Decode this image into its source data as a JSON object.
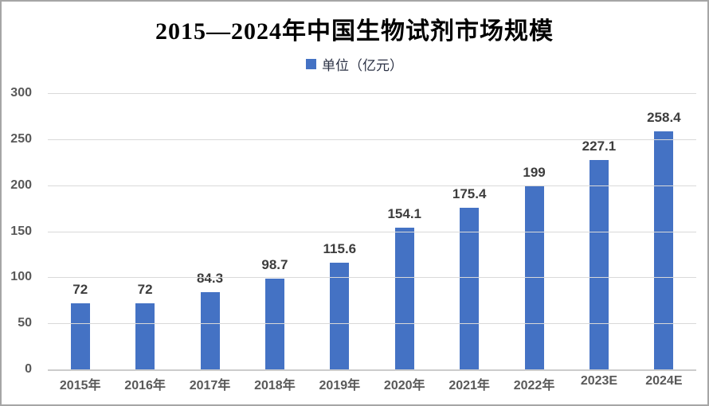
{
  "chart_data": {
    "type": "bar",
    "title": "2015—2024年中国生物试剂市场规模",
    "legend": {
      "label": "单位（亿元）",
      "swatch_color": "#4472C4",
      "position": "top-center"
    },
    "categories": [
      "2015年",
      "2016年",
      "2017年",
      "2018年",
      "2019年",
      "2020年",
      "2021年",
      "2022年",
      "2023E",
      "2024E"
    ],
    "values": [
      72,
      72,
      84.3,
      98.7,
      115.6,
      154.1,
      175.4,
      199,
      227.1,
      258.4
    ],
    "data_labels": [
      "72",
      "72",
      "84.3",
      "98.7",
      "115.6",
      "154.1",
      "175.4",
      "199",
      "227.1",
      "258.4"
    ],
    "xlabel": "",
    "ylabel": "",
    "ylim": [
      0,
      300
    ],
    "yticks": [
      0,
      50,
      100,
      150,
      200,
      250,
      300
    ],
    "grid": true,
    "colors": {
      "bar": "#4472C4",
      "gridline": "#d9d9d9",
      "axis_line": "#cccccc",
      "axis_labels": "#595959",
      "data_labels": "#3d3d3d",
      "title": "#000000",
      "frame_border": "#a6a6a6",
      "background": "#ffffff"
    }
  }
}
